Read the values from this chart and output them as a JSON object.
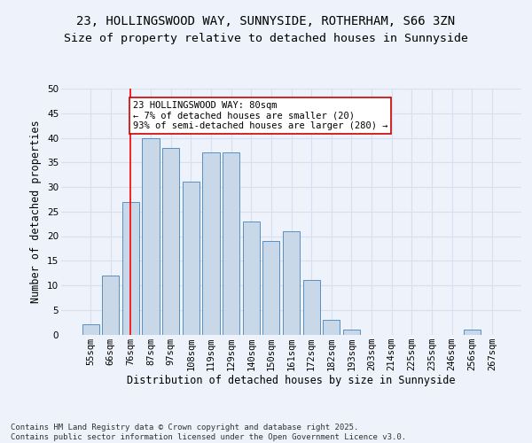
{
  "title_line1": "23, HOLLINGSWOOD WAY, SUNNYSIDE, ROTHERHAM, S66 3ZN",
  "title_line2": "Size of property relative to detached houses in Sunnyside",
  "xlabel": "Distribution of detached houses by size in Sunnyside",
  "ylabel": "Number of detached properties",
  "categories": [
    "55sqm",
    "66sqm",
    "76sqm",
    "87sqm",
    "97sqm",
    "108sqm",
    "119sqm",
    "129sqm",
    "140sqm",
    "150sqm",
    "161sqm",
    "172sqm",
    "182sqm",
    "193sqm",
    "203sqm",
    "214sqm",
    "225sqm",
    "235sqm",
    "246sqm",
    "256sqm",
    "267sqm"
  ],
  "values": [
    2,
    12,
    27,
    40,
    38,
    31,
    37,
    37,
    23,
    19,
    21,
    11,
    3,
    1,
    0,
    0,
    0,
    0,
    0,
    1,
    0
  ],
  "bar_color": "#c8d8e8",
  "bar_edge_color": "#5a8fc0",
  "grid_color": "#d8dff0",
  "background_color": "#eef2fa",
  "plot_bg_color": "#eef2fa",
  "red_line_x": 2,
  "annotation_text": "23 HOLLINGSWOOD WAY: 80sqm\n← 7% of detached houses are smaller (20)\n93% of semi-detached houses are larger (280) →",
  "annotation_box_color": "#ffffff",
  "annotation_box_edge": "#cc0000",
  "footnote": "Contains HM Land Registry data © Crown copyright and database right 2025.\nContains public sector information licensed under the Open Government Licence v3.0.",
  "ylim": [
    0,
    50
  ],
  "yticks": [
    0,
    5,
    10,
    15,
    20,
    25,
    30,
    35,
    40,
    45,
    50
  ],
  "title_fontsize": 10,
  "subtitle_fontsize": 9.5,
  "axis_label_fontsize": 8.5,
  "tick_fontsize": 7.5,
  "annotation_fontsize": 7.5,
  "footnote_fontsize": 6.5
}
